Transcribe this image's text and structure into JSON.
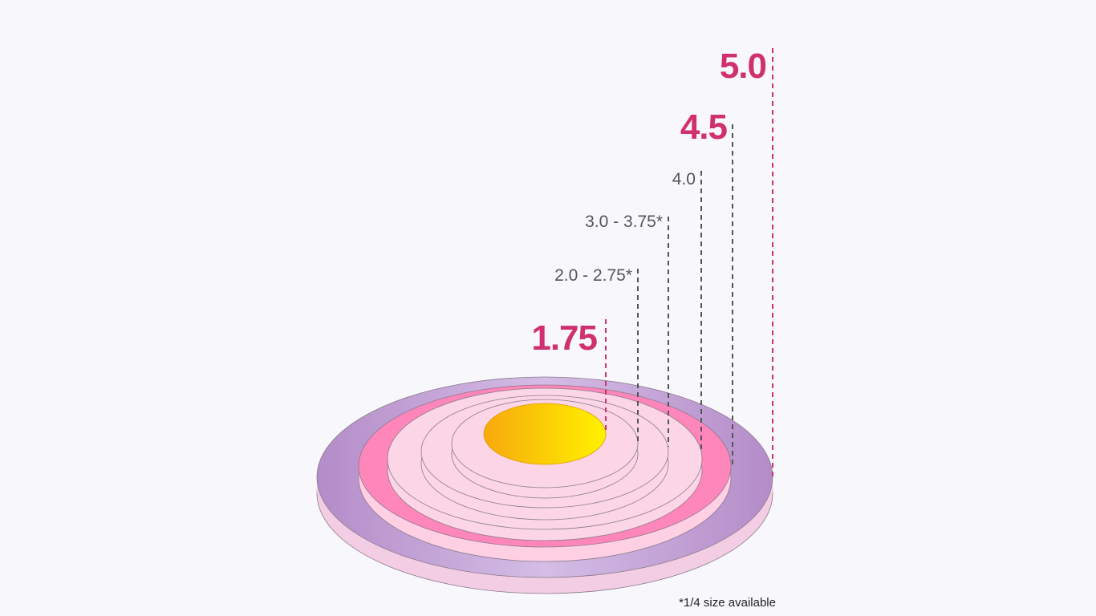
{
  "labels": [
    "5.0",
    "4.5",
    "4.0",
    "3.0 - 3.75*",
    "2.0 - 2.75*",
    "1.75"
  ],
  "footnote": "*1/4 size available"
}
